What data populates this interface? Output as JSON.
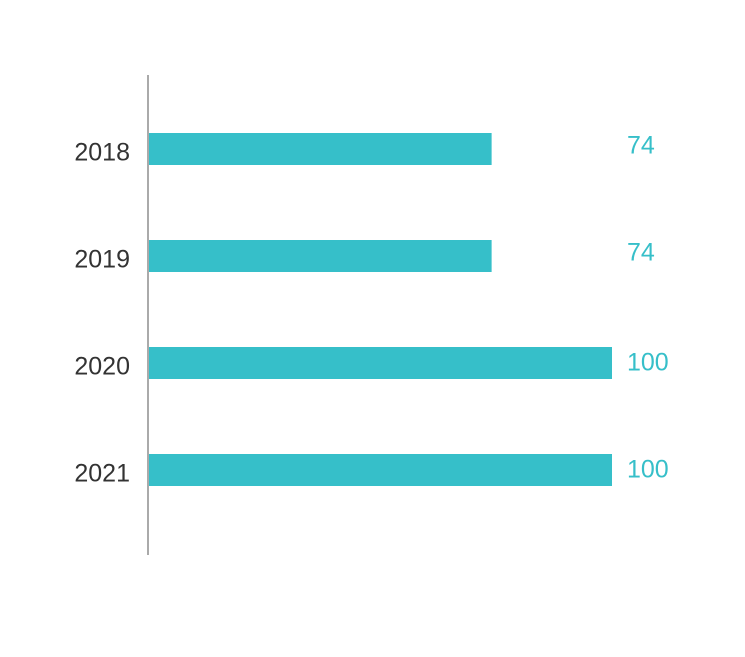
{
  "chart_data": {
    "type": "hbar",
    "categories": [
      "2018",
      "2019",
      "2020",
      "2021"
    ],
    "values": [
      74,
      74,
      100,
      100
    ],
    "color": "#36bfc9",
    "xlim": [
      0,
      100
    ]
  }
}
